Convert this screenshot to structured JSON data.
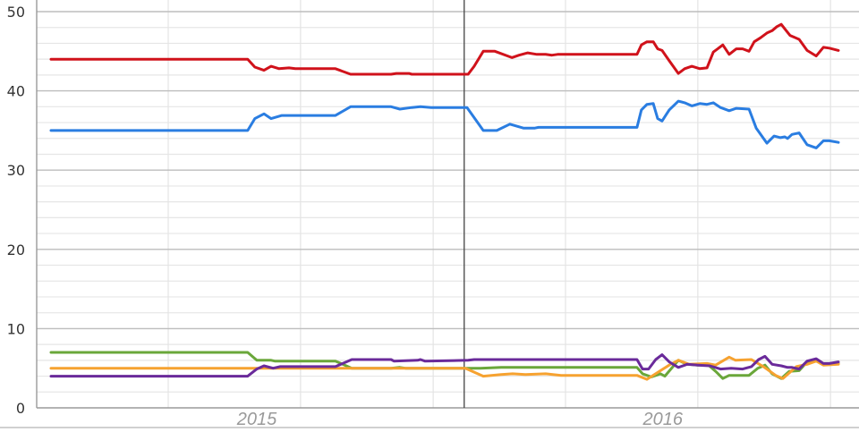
{
  "chart_data": {
    "type": "line",
    "title": "",
    "xlabel": "",
    "ylabel": "",
    "xlim": [
      2014.667,
      2016.736
    ],
    "ylim": [
      0,
      50
    ],
    "y_ticks": [
      0,
      10,
      20,
      30,
      40,
      50
    ],
    "y_minor_step": 2,
    "x_grid": [
      2015.0,
      2015.333,
      2015.667,
      2016.0,
      2016.333,
      2016.667
    ],
    "x_tick_labels": [
      {
        "label": "2015",
        "at": 2015.223
      },
      {
        "label": "2016",
        "at": 2016.245
      }
    ],
    "marker_line_x": 2015.745,
    "grid": true,
    "legend": "none",
    "series": [
      {
        "color": "#d0121b",
        "points": [
          [
            2014.705,
            44.0
          ],
          [
            2015.2,
            44.0
          ],
          [
            2015.218,
            43.0
          ],
          [
            2015.241,
            42.6
          ],
          [
            2015.259,
            43.1
          ],
          [
            2015.279,
            42.8
          ],
          [
            2015.304,
            42.9
          ],
          [
            2015.32,
            42.8
          ],
          [
            2015.421,
            42.8
          ],
          [
            2015.459,
            42.1
          ],
          [
            2015.561,
            42.1
          ],
          [
            2015.574,
            42.2
          ],
          [
            2015.606,
            42.2
          ],
          [
            2015.613,
            42.1
          ],
          [
            2015.755,
            42.1
          ],
          [
            2015.77,
            43.1
          ],
          [
            2015.793,
            45.0
          ],
          [
            2015.822,
            45.0
          ],
          [
            2015.865,
            44.2
          ],
          [
            2015.883,
            44.5
          ],
          [
            2015.905,
            44.8
          ],
          [
            2015.928,
            44.6
          ],
          [
            2015.95,
            44.6
          ],
          [
            2015.966,
            44.5
          ],
          [
            2015.98,
            44.6
          ],
          [
            2016.18,
            44.6
          ],
          [
            2016.191,
            45.8
          ],
          [
            2016.205,
            46.2
          ],
          [
            2016.221,
            46.2
          ],
          [
            2016.232,
            45.3
          ],
          [
            2016.243,
            45.1
          ],
          [
            2016.261,
            43.8
          ],
          [
            2016.284,
            42.2
          ],
          [
            2016.3,
            42.8
          ],
          [
            2016.318,
            43.1
          ],
          [
            2016.338,
            42.8
          ],
          [
            2016.356,
            42.9
          ],
          [
            2016.372,
            44.9
          ],
          [
            2016.383,
            45.3
          ],
          [
            2016.396,
            45.8
          ],
          [
            2016.412,
            44.6
          ],
          [
            2016.43,
            45.3
          ],
          [
            2016.446,
            45.3
          ],
          [
            2016.462,
            45.0
          ],
          [
            2016.475,
            46.2
          ],
          [
            2016.491,
            46.7
          ],
          [
            2016.507,
            47.3
          ],
          [
            2016.52,
            47.6
          ],
          [
            2016.532,
            48.1
          ],
          [
            2016.543,
            48.4
          ],
          [
            2016.554,
            47.7
          ],
          [
            2016.565,
            47.0
          ],
          [
            2016.588,
            46.5
          ],
          [
            2016.608,
            45.1
          ],
          [
            2016.631,
            44.4
          ],
          [
            2016.649,
            45.5
          ],
          [
            2016.664,
            45.4
          ],
          [
            2016.687,
            45.1
          ]
        ]
      },
      {
        "color": "#2a7de1",
        "points": [
          [
            2014.705,
            35.0
          ],
          [
            2015.2,
            35.0
          ],
          [
            2015.218,
            36.5
          ],
          [
            2015.241,
            37.1
          ],
          [
            2015.259,
            36.5
          ],
          [
            2015.286,
            36.9
          ],
          [
            2015.421,
            36.9
          ],
          [
            2015.459,
            38.0
          ],
          [
            2015.561,
            38.0
          ],
          [
            2015.583,
            37.7
          ],
          [
            2015.613,
            37.9
          ],
          [
            2015.635,
            38.0
          ],
          [
            2015.662,
            37.9
          ],
          [
            2015.752,
            37.9
          ],
          [
            2015.793,
            35.0
          ],
          [
            2015.827,
            35.0
          ],
          [
            2015.86,
            35.8
          ],
          [
            2015.894,
            35.3
          ],
          [
            2015.923,
            35.3
          ],
          [
            2015.932,
            35.4
          ],
          [
            2016.18,
            35.4
          ],
          [
            2016.191,
            37.6
          ],
          [
            2016.205,
            38.3
          ],
          [
            2016.221,
            38.4
          ],
          [
            2016.232,
            36.5
          ],
          [
            2016.243,
            36.2
          ],
          [
            2016.261,
            37.6
          ],
          [
            2016.284,
            38.7
          ],
          [
            2016.3,
            38.5
          ],
          [
            2016.318,
            38.1
          ],
          [
            2016.338,
            38.4
          ],
          [
            2016.356,
            38.3
          ],
          [
            2016.372,
            38.5
          ],
          [
            2016.39,
            37.9
          ],
          [
            2016.412,
            37.5
          ],
          [
            2016.43,
            37.8
          ],
          [
            2016.462,
            37.7
          ],
          [
            2016.48,
            35.3
          ],
          [
            2016.507,
            33.4
          ],
          [
            2016.525,
            34.3
          ],
          [
            2016.541,
            34.1
          ],
          [
            2016.552,
            34.2
          ],
          [
            2016.559,
            34.0
          ],
          [
            2016.57,
            34.5
          ],
          [
            2016.588,
            34.7
          ],
          [
            2016.608,
            33.2
          ],
          [
            2016.631,
            32.8
          ],
          [
            2016.649,
            33.7
          ],
          [
            2016.664,
            33.7
          ],
          [
            2016.687,
            33.5
          ]
        ]
      },
      {
        "color": "#6aa73a",
        "points": [
          [
            2014.705,
            7.0
          ],
          [
            2015.2,
            7.0
          ],
          [
            2015.223,
            6.0
          ],
          [
            2015.259,
            6.0
          ],
          [
            2015.268,
            5.9
          ],
          [
            2015.421,
            5.9
          ],
          [
            2015.462,
            5.0
          ],
          [
            2015.561,
            5.0
          ],
          [
            2015.583,
            5.1
          ],
          [
            2015.597,
            5.0
          ],
          [
            2015.748,
            5.0
          ],
          [
            2015.786,
            5.0
          ],
          [
            2015.838,
            5.1
          ],
          [
            2016.18,
            5.1
          ],
          [
            2016.194,
            4.3
          ],
          [
            2016.216,
            3.9
          ],
          [
            2016.239,
            4.3
          ],
          [
            2016.25,
            4.0
          ],
          [
            2016.284,
            6.0
          ],
          [
            2016.306,
            5.5
          ],
          [
            2016.333,
            5.4
          ],
          [
            2016.36,
            5.4
          ],
          [
            2016.378,
            4.6
          ],
          [
            2016.396,
            3.7
          ],
          [
            2016.412,
            4.1
          ],
          [
            2016.462,
            4.1
          ],
          [
            2016.484,
            5.0
          ],
          [
            2016.502,
            5.4
          ],
          [
            2016.52,
            4.3
          ],
          [
            2016.543,
            3.7
          ],
          [
            2016.563,
            4.6
          ],
          [
            2016.588,
            4.7
          ],
          [
            2016.608,
            5.8
          ],
          [
            2016.631,
            6.1
          ],
          [
            2016.649,
            5.6
          ],
          [
            2016.687,
            5.6
          ]
        ]
      },
      {
        "color": "#f6a230",
        "points": [
          [
            2014.705,
            5.0
          ],
          [
            2015.439,
            5.0
          ],
          [
            2015.748,
            5.0
          ],
          [
            2015.793,
            4.0
          ],
          [
            2015.838,
            4.2
          ],
          [
            2015.867,
            4.3
          ],
          [
            2015.899,
            4.2
          ],
          [
            2015.95,
            4.3
          ],
          [
            2015.989,
            4.1
          ],
          [
            2016.18,
            4.1
          ],
          [
            2016.205,
            3.6
          ],
          [
            2016.236,
            4.6
          ],
          [
            2016.261,
            5.4
          ],
          [
            2016.284,
            6.0
          ],
          [
            2016.311,
            5.5
          ],
          [
            2016.356,
            5.6
          ],
          [
            2016.378,
            5.4
          ],
          [
            2016.412,
            6.4
          ],
          [
            2016.428,
            6.0
          ],
          [
            2016.468,
            6.1
          ],
          [
            2016.498,
            5.2
          ],
          [
            2016.529,
            4.1
          ],
          [
            2016.547,
            3.7
          ],
          [
            2016.563,
            4.4
          ],
          [
            2016.581,
            5.2
          ],
          [
            2016.608,
            5.5
          ],
          [
            2016.631,
            5.9
          ],
          [
            2016.649,
            5.4
          ],
          [
            2016.687,
            5.5
          ]
        ]
      },
      {
        "color": "#6a2a9a",
        "points": [
          [
            2014.705,
            4.0
          ],
          [
            2015.2,
            4.0
          ],
          [
            2015.223,
            4.9
          ],
          [
            2015.241,
            5.3
          ],
          [
            2015.264,
            5.0
          ],
          [
            2015.282,
            5.2
          ],
          [
            2015.421,
            5.2
          ],
          [
            2015.462,
            6.1
          ],
          [
            2015.561,
            6.1
          ],
          [
            2015.568,
            5.9
          ],
          [
            2015.628,
            6.0
          ],
          [
            2015.635,
            6.1
          ],
          [
            2015.646,
            5.9
          ],
          [
            2015.755,
            6.0
          ],
          [
            2015.77,
            6.1
          ],
          [
            2016.18,
            6.1
          ],
          [
            2016.194,
            4.9
          ],
          [
            2016.209,
            4.9
          ],
          [
            2016.227,
            6.1
          ],
          [
            2016.243,
            6.7
          ],
          [
            2016.261,
            5.8
          ],
          [
            2016.284,
            5.1
          ],
          [
            2016.306,
            5.5
          ],
          [
            2016.333,
            5.4
          ],
          [
            2016.363,
            5.3
          ],
          [
            2016.39,
            4.9
          ],
          [
            2016.417,
            5.0
          ],
          [
            2016.446,
            4.9
          ],
          [
            2016.468,
            5.2
          ],
          [
            2016.486,
            6.1
          ],
          [
            2016.502,
            6.5
          ],
          [
            2016.52,
            5.5
          ],
          [
            2016.543,
            5.3
          ],
          [
            2016.559,
            5.1
          ],
          [
            2016.57,
            5.1
          ],
          [
            2016.588,
            4.9
          ],
          [
            2016.608,
            5.9
          ],
          [
            2016.631,
            6.2
          ],
          [
            2016.649,
            5.6
          ],
          [
            2016.664,
            5.6
          ],
          [
            2016.687,
            5.8
          ]
        ]
      }
    ]
  }
}
